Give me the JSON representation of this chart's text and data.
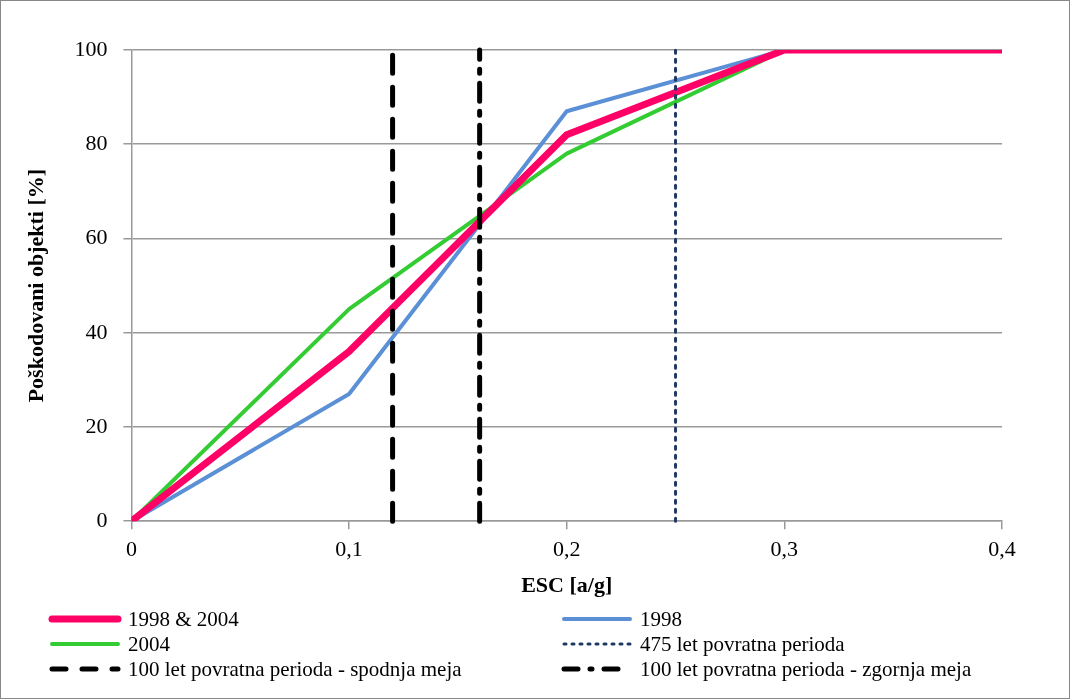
{
  "chart_data": {
    "type": "line",
    "xlabel": "ESC [a/g]",
    "ylabel": "Poškodovani objekti [%]",
    "x": [
      0,
      0.1,
      0.2,
      0.3,
      0.4
    ],
    "series": [
      {
        "name": "1998 & 2004",
        "color": "#ff0066",
        "values": [
          0,
          36,
          82,
          100,
          100
        ]
      },
      {
        "name": "1998",
        "color": "#5b8fd6",
        "values": [
          0,
          27,
          87,
          100,
          100
        ]
      },
      {
        "name": "2004",
        "color": "#33cc33",
        "values": [
          0,
          45,
          78,
          100,
          100
        ]
      }
    ],
    "ref_lines": [
      {
        "axis": "x",
        "value": 0.25,
        "label": "475 let povratna perioda",
        "color": "#1f3864",
        "line_style": "dotted"
      },
      {
        "axis": "x",
        "value": 0.12,
        "label": "100 let povratna perioda - spodnja meja",
        "color": "#000000",
        "line_style": "dashed"
      },
      {
        "axis": "x",
        "value": 0.16,
        "label": "100 let povratna perioda - zgornja meja",
        "color": "#000000",
        "line_style": "dashdot"
      }
    ],
    "xlim": [
      0,
      0.4
    ],
    "xticks": [
      {
        "value": 0,
        "label": "0"
      },
      {
        "value": 0.1,
        "label": "0,1"
      },
      {
        "value": 0.2,
        "label": "0,2"
      },
      {
        "value": 0.3,
        "label": "0,3"
      },
      {
        "value": 0.4,
        "label": "0,4"
      }
    ],
    "ylim": [
      0,
      100
    ],
    "yticks": [
      0,
      20,
      40,
      60,
      80,
      100
    ],
    "grid": "y",
    "legend": "bottom",
    "marker": "none",
    "line_style": "solid"
  }
}
